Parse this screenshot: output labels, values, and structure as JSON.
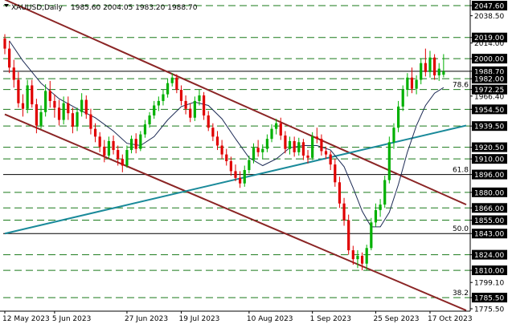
{
  "header": {
    "symbol": "XAUUSD,Daily",
    "ohlc": "1985.60 2004.05 1983.20 1988.70"
  },
  "colors": {
    "background": "#ffffff",
    "bull": "#00b000",
    "bear": "#e00000",
    "ma": "#1c2a55",
    "channel": "#8b2525",
    "trend": "#1a8a9a",
    "level": "#1a7a1a",
    "current_price_box": "#000000",
    "label_box": "#000000"
  },
  "chart_data": {
    "type": "candlestick",
    "y_range": [
      1775.5,
      2056.0
    ],
    "x_range": [
      0,
      102
    ],
    "x_tick_labels": [
      {
        "label": "12 May 2023",
        "x": 0
      },
      {
        "label": "5 Jun 2023",
        "x": 11
      },
      {
        "label": "27 Jun 2023",
        "x": 27
      },
      {
        "label": "19 Jul 2023",
        "x": 39
      },
      {
        "label": "10 Aug 2023",
        "x": 54
      },
      {
        "label": "1 Sep 2023",
        "x": 68
      },
      {
        "label": "25 Sep 2023",
        "x": 82
      },
      {
        "label": "17 Oct 2023",
        "x": 94
      }
    ],
    "y_axis_labels": [
      {
        "label": "2047.60",
        "y": 2047.6,
        "boxed": true
      },
      {
        "label": "2038.50",
        "y": 2038.5,
        "boxed": false
      },
      {
        "label": "2019.00",
        "y": 2019.0,
        "boxed": true
      },
      {
        "label": "2014.00",
        "y": 2014.0,
        "boxed": false
      },
      {
        "label": "2000.00",
        "y": 2000.0,
        "boxed": true
      },
      {
        "label": "1988.70",
        "y": 1988.7,
        "boxed": true
      },
      {
        "label": "1982.00",
        "y": 1982.0,
        "boxed": true
      },
      {
        "label": "1972.25",
        "y": 1972.25,
        "boxed": true
      },
      {
        "label": "1966.40",
        "y": 1966.4,
        "boxed": false
      },
      {
        "label": "1954.50",
        "y": 1954.5,
        "boxed": true
      },
      {
        "label": "1939.50",
        "y": 1939.5,
        "boxed": true
      },
      {
        "label": "1920.50",
        "y": 1920.5,
        "boxed": true
      },
      {
        "label": "1910.00",
        "y": 1910.0,
        "boxed": true
      },
      {
        "label": "1896.00",
        "y": 1896.0,
        "boxed": true
      },
      {
        "label": "1880.00",
        "y": 1880.0,
        "boxed": true
      },
      {
        "label": "1866.00",
        "y": 1866.0,
        "boxed": true
      },
      {
        "label": "1855.00",
        "y": 1855.0,
        "boxed": true
      },
      {
        "label": "1843.00",
        "y": 1843.0,
        "boxed": true
      },
      {
        "label": "1824.00",
        "y": 1824.0,
        "boxed": true
      },
      {
        "label": "1810.00",
        "y": 1810.0,
        "boxed": true
      },
      {
        "label": "1799.10",
        "y": 1799.1,
        "boxed": false
      },
      {
        "label": "1785.50",
        "y": 1785.5,
        "boxed": true
      },
      {
        "label": "1775.50",
        "y": 1775.5,
        "boxed": false
      }
    ],
    "dashed_levels": [
      2047.6,
      2019.0,
      2000.0,
      1982.0,
      1972.25,
      1954.5,
      1939.5,
      1920.5,
      1910.0,
      1880.0,
      1866.0,
      1855.0,
      1824.0,
      1810.0,
      1785.5
    ],
    "solid_levels": [
      1988.7,
      1896.0,
      1843.0
    ],
    "fib_levels": [
      {
        "label": "78.6",
        "y": 1972.25
      },
      {
        "label": "61.8",
        "y": 1896.0
      },
      {
        "label": "50.0",
        "y": 1843.0
      },
      {
        "label": "38.2",
        "y": 1785.5
      }
    ],
    "trendlines": [
      {
        "name": "channel-upper",
        "color_key": "channel",
        "from": [
          0,
          2053
        ],
        "to": [
          102,
          1869
        ]
      },
      {
        "name": "channel-lower",
        "color_key": "channel",
        "from": [
          0,
          1950
        ],
        "to": [
          102,
          1774
        ]
      },
      {
        "name": "rising-support",
        "color_key": "trend",
        "from": [
          0,
          1843
        ],
        "to": [
          102,
          1940
        ]
      }
    ],
    "candles": [
      [
        2018,
        2022,
        2004,
        2009
      ],
      [
        2009,
        2016,
        1987,
        1992
      ],
      [
        1992,
        1999,
        1974,
        1981
      ],
      [
        1981,
        1988,
        1956,
        1960
      ],
      [
        1960,
        1968,
        1948,
        1955
      ],
      [
        1955,
        1981,
        1951,
        1976
      ],
      [
        1976,
        1981,
        1956,
        1959
      ],
      [
        1959,
        1964,
        1933,
        1940
      ],
      [
        1940,
        1958,
        1937,
        1952
      ],
      [
        1952,
        1977,
        1948,
        1971
      ],
      [
        1971,
        1980,
        1956,
        1962
      ],
      [
        1962,
        1968,
        1947,
        1956
      ],
      [
        1956,
        1963,
        1940,
        1945
      ],
      [
        1945,
        1966,
        1941,
        1960
      ],
      [
        1960,
        1966,
        1945,
        1951
      ],
      [
        1951,
        1956,
        1933,
        1939
      ],
      [
        1939,
        1956,
        1935,
        1952
      ],
      [
        1952,
        1969,
        1948,
        1963
      ],
      [
        1963,
        1967,
        1946,
        1950
      ],
      [
        1950,
        1955,
        1932,
        1937
      ],
      [
        1937,
        1942,
        1925,
        1930
      ],
      [
        1930,
        1934,
        1916,
        1921
      ],
      [
        1921,
        1927,
        1907,
        1913
      ],
      [
        1913,
        1930,
        1910,
        1926
      ],
      [
        1926,
        1931,
        1914,
        1918
      ],
      [
        1918,
        1922,
        1904,
        1910
      ],
      [
        1910,
        1914,
        1898,
        1904
      ],
      [
        1904,
        1922,
        1902,
        1918
      ],
      [
        1918,
        1931,
        1915,
        1928
      ],
      [
        1928,
        1933,
        1915,
        1919
      ],
      [
        1919,
        1935,
        1917,
        1932
      ],
      [
        1932,
        1945,
        1929,
        1941
      ],
      [
        1941,
        1952,
        1938,
        1949
      ],
      [
        1949,
        1962,
        1946,
        1958
      ],
      [
        1958,
        1966,
        1953,
        1962
      ],
      [
        1962,
        1972,
        1958,
        1968
      ],
      [
        1968,
        1982,
        1965,
        1978
      ],
      [
        1978,
        1987,
        1975,
        1983
      ],
      [
        1983,
        1986,
        1969,
        1972
      ],
      [
        1972,
        1976,
        1958,
        1962
      ],
      [
        1962,
        1967,
        1950,
        1955
      ],
      [
        1955,
        1960,
        1943,
        1947
      ],
      [
        1947,
        1966,
        1944,
        1962
      ],
      [
        1962,
        1972,
        1958,
        1967
      ],
      [
        1967,
        1970,
        1945,
        1949
      ],
      [
        1949,
        1953,
        1935,
        1938
      ],
      [
        1938,
        1942,
        1926,
        1930
      ],
      [
        1930,
        1935,
        1918,
        1922
      ],
      [
        1922,
        1927,
        1910,
        1914
      ],
      [
        1914,
        1919,
        1904,
        1908
      ],
      [
        1908,
        1912,
        1895,
        1899
      ],
      [
        1899,
        1905,
        1890,
        1893
      ],
      [
        1893,
        1899,
        1884,
        1888
      ],
      [
        1888,
        1904,
        1885,
        1900
      ],
      [
        1900,
        1913,
        1897,
        1909
      ],
      [
        1909,
        1924,
        1906,
        1920
      ],
      [
        1920,
        1927,
        1912,
        1916
      ],
      [
        1916,
        1923,
        1910,
        1919
      ],
      [
        1919,
        1932,
        1916,
        1928
      ],
      [
        1928,
        1941,
        1925,
        1937
      ],
      [
        1937,
        1946,
        1932,
        1942
      ],
      [
        1942,
        1947,
        1927,
        1931
      ],
      [
        1931,
        1935,
        1915,
        1919
      ],
      [
        1919,
        1930,
        1914,
        1926
      ],
      [
        1926,
        1930,
        1912,
        1916
      ],
      [
        1916,
        1929,
        1913,
        1925
      ],
      [
        1925,
        1928,
        1909,
        1913
      ],
      [
        1913,
        1918,
        1906,
        1911
      ],
      [
        1911,
        1934,
        1909,
        1930
      ],
      [
        1930,
        1938,
        1924,
        1928
      ],
      [
        1928,
        1932,
        1913,
        1917
      ],
      [
        1917,
        1921,
        1910,
        1914
      ],
      [
        1914,
        1917,
        1900,
        1905
      ],
      [
        1905,
        1910,
        1885,
        1889
      ],
      [
        1889,
        1894,
        1866,
        1870
      ],
      [
        1870,
        1875,
        1850,
        1855
      ],
      [
        1855,
        1860,
        1824,
        1828
      ],
      [
        1828,
        1832,
        1815,
        1820
      ],
      [
        1820,
        1828,
        1812,
        1823
      ],
      [
        1823,
        1826,
        1810,
        1816
      ],
      [
        1816,
        1833,
        1810,
        1830
      ],
      [
        1830,
        1857,
        1828,
        1853
      ],
      [
        1853,
        1870,
        1849,
        1864
      ],
      [
        1864,
        1874,
        1858,
        1869
      ],
      [
        1869,
        1895,
        1866,
        1891
      ],
      [
        1891,
        1930,
        1888,
        1925
      ],
      [
        1925,
        1942,
        1919,
        1938
      ],
      [
        1938,
        1962,
        1934,
        1957
      ],
      [
        1957,
        1976,
        1953,
        1972
      ],
      [
        1972,
        1987,
        1966,
        1983
      ],
      [
        1983,
        1992,
        1969,
        1973
      ],
      [
        1973,
        1985,
        1968,
        1981
      ],
      [
        1981,
        2000,
        1977,
        1996
      ],
      [
        1996,
        2009,
        1984,
        1988
      ],
      [
        1988,
        2007,
        1983,
        2001
      ],
      [
        2001,
        2004,
        1981,
        1985
      ],
      [
        1985,
        1996,
        1980,
        1991
      ],
      [
        1985.6,
        2004.05,
        1983.2,
        1988.7
      ]
    ],
    "moving_average": [
      [
        1,
        2016
      ],
      [
        4,
        1998
      ],
      [
        8,
        1978
      ],
      [
        12,
        1964
      ],
      [
        16,
        1955
      ],
      [
        20,
        1947
      ],
      [
        24,
        1935
      ],
      [
        27,
        1924
      ],
      [
        30,
        1922
      ],
      [
        33,
        1930
      ],
      [
        36,
        1945
      ],
      [
        39,
        1957
      ],
      [
        42,
        1961
      ],
      [
        45,
        1958
      ],
      [
        48,
        1946
      ],
      [
        51,
        1928
      ],
      [
        54,
        1911
      ],
      [
        57,
        1904
      ],
      [
        60,
        1910
      ],
      [
        63,
        1920
      ],
      [
        66,
        1922
      ],
      [
        69,
        1922
      ],
      [
        72,
        1918
      ],
      [
        75,
        1903
      ],
      [
        77,
        1884
      ],
      [
        79,
        1863
      ],
      [
        81,
        1849
      ],
      [
        83,
        1849
      ],
      [
        85,
        1862
      ],
      [
        87,
        1887
      ],
      [
        89,
        1916
      ],
      [
        91,
        1940
      ],
      [
        93,
        1958
      ],
      [
        95,
        1969
      ],
      [
        97,
        1974
      ]
    ]
  }
}
